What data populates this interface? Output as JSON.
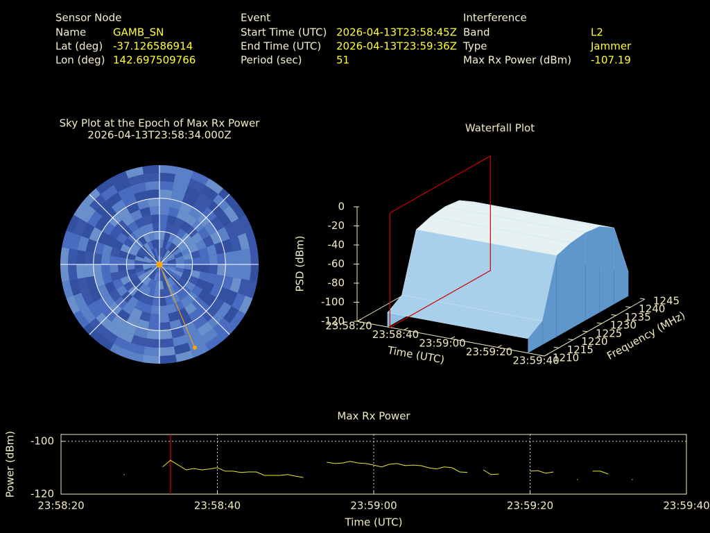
{
  "info": [
    {
      "heading": "Sensor Node",
      "rows": [
        {
          "label": "Name",
          "value": "GAMB_SN"
        },
        {
          "label": "Lat (deg)",
          "value": "-37.126586914"
        },
        {
          "label": "Lon (deg)",
          "value": "142.697509766"
        }
      ]
    },
    {
      "heading": "Event",
      "rows": [
        {
          "label": "Start Time (UTC)",
          "value": "2026-04-13T23:58:45Z"
        },
        {
          "label": "End Time (UTC)",
          "value": "2026-04-13T23:59:36Z"
        },
        {
          "label": "Period (sec)",
          "value": "51"
        }
      ]
    },
    {
      "heading": "Interference",
      "rows": [
        {
          "label": "Band",
          "value": "L2"
        },
        {
          "label": "Type",
          "value": "Jammer"
        },
        {
          "label": "Max Rx Power (dBm)",
          "value": "-107.19"
        }
      ]
    }
  ],
  "chart_data": [
    {
      "type": "polar",
      "title": "Sky Plot at the Epoch of Max Rx Power",
      "subtitle": "2026-04-13T23:58:34.000Z",
      "rlim": [
        90,
        0
      ],
      "rticks": [
        0,
        30,
        60
      ],
      "azticks": [
        0,
        45,
        90,
        135,
        180,
        225,
        270,
        315
      ],
      "points": {
        "az": [
          210.5,
          157
        ],
        "el": [
          0,
          82
        ],
        "color": "#ffa500"
      }
    },
    {
      "type": "waterfall",
      "title": "Waterfall Plot",
      "xlabel": "Time (UTC)",
      "ylabel": "Frequency (MHz)",
      "zlabel": "PSD (dBm)",
      "xlim": [
        0,
        80
      ],
      "xticks": [
        {
          "value": 0,
          "label": "23:58:20"
        },
        {
          "value": 20,
          "label": "23:58:40"
        },
        {
          "value": 40,
          "label": "23:59:00"
        },
        {
          "value": 60,
          "label": "23:59:20"
        },
        {
          "value": 80,
          "label": "23:59:40"
        }
      ],
      "ylim": [
        1210,
        1245
      ],
      "yticks": [
        1210,
        1215,
        1220,
        1225,
        1230,
        1235,
        1240,
        1245
      ],
      "zlim": [
        -120,
        0
      ],
      "zticks": [
        0,
        -20,
        -40,
        -60,
        -80,
        -100,
        -120
      ],
      "x_range": [
        13,
        73
      ],
      "frequencies": [
        1210,
        1215,
        1220,
        1225,
        1230,
        1235,
        1240,
        1245
      ],
      "psd": [
        -105,
        -95,
        -35,
        -30,
        -28,
        -30,
        -40,
        -95
      ],
      "marker_x": 14,
      "marker_color": "#cc0000"
    },
    {
      "type": "line",
      "title": "Max Rx Power",
      "xlabel": "Time (UTC)",
      "ylabel": "Power (dBm)",
      "xlim": [
        0,
        80
      ],
      "xticks": [
        {
          "value": 0,
          "label": "23:58:20"
        },
        {
          "value": 20,
          "label": "23:58:40"
        },
        {
          "value": 40,
          "label": "23:59:00"
        },
        {
          "value": 60,
          "label": "23:59:20"
        },
        {
          "value": 80,
          "label": "23:59:40"
        }
      ],
      "ylim": [
        -120,
        -97.4
      ],
      "yticks": [
        -120,
        -100
      ],
      "grid": true,
      "marker_x": 14,
      "marker_color": "#dd0000",
      "x": [
        8,
        9,
        10,
        11,
        12,
        13,
        14,
        15,
        16,
        17,
        18,
        19,
        20,
        21,
        22,
        23,
        24,
        25,
        26,
        27,
        28,
        29,
        30,
        31,
        32,
        33,
        34,
        35,
        36,
        37,
        38,
        39,
        40,
        41,
        42,
        43,
        44,
        45,
        46,
        47,
        48,
        49,
        50,
        51,
        52,
        53,
        54,
        55,
        56,
        57,
        58,
        59,
        60,
        61,
        62,
        63,
        64,
        65,
        66,
        67,
        68,
        69,
        70,
        71,
        72,
        73
      ],
      "series": [
        {
          "color": "#e8e830",
          "values": [
            -112.6,
            null,
            null,
            null,
            null,
            -109.7,
            -107.19,
            -109,
            -110.8,
            -110.3,
            -110.8,
            -110.5,
            -110,
            -111.3,
            -111.3,
            -111.8,
            -111.6,
            -111.6,
            -112.9,
            -112.9,
            -112.9,
            -112.6,
            -113.2,
            -113.7,
            null,
            null,
            -107.9,
            -108.4,
            -108.2,
            -107.6,
            -108.2,
            -108.4,
            -109,
            -109.7,
            -108.7,
            -108.4,
            -109.2,
            -109,
            -109.2,
            -110,
            -110.5,
            -109.7,
            -110,
            -111.6,
            -111.8,
            null,
            -110.8,
            -112.6,
            -112.4,
            null,
            null,
            null,
            -111.3,
            -111.1,
            -112.1,
            -111.6,
            null,
            null,
            -114.5,
            null,
            -111.3,
            -111.3,
            -112.4,
            null,
            null,
            -114.5
          ]
        }
      ]
    }
  ]
}
